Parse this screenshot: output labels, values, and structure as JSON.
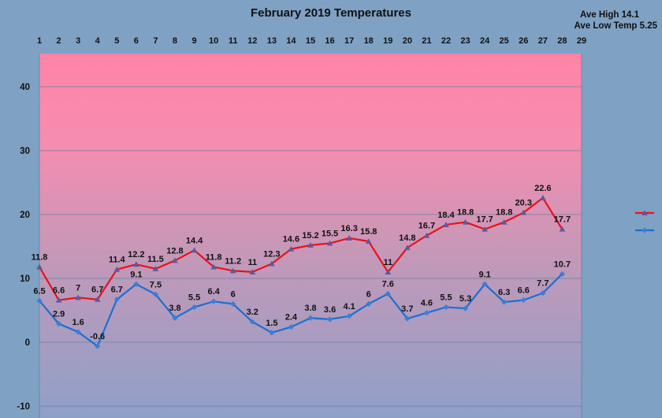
{
  "chart_data": {
    "type": "line",
    "title": "February 2019 Temperatures",
    "annotations": {
      "ave_high": "Ave High 14.1",
      "ave_low": "Ave Low  Temp 5.25"
    },
    "x": [
      1,
      2,
      3,
      4,
      5,
      6,
      7,
      8,
      9,
      10,
      11,
      12,
      13,
      14,
      15,
      16,
      17,
      18,
      19,
      20,
      21,
      22,
      23,
      24,
      25,
      26,
      27,
      28
    ],
    "x_ticks": [
      "1",
      "2",
      "3",
      "4",
      "5",
      "6",
      "7",
      "8",
      "9",
      "10",
      "11",
      "12",
      "13",
      "14",
      "15",
      "16",
      "17",
      "18",
      "19",
      "20",
      "21",
      "22",
      "23",
      "24",
      "25",
      "26",
      "27",
      "28",
      "29"
    ],
    "xlim": [
      1,
      29
    ],
    "x_axis_position": "top",
    "ylim": [
      -10,
      45
    ],
    "y_ticks": [
      "-10",
      "0",
      "10",
      "20",
      "30",
      "40"
    ],
    "y_tick_values": [
      -10,
      0,
      10,
      20,
      30,
      40
    ],
    "grid": true,
    "legend": "right",
    "series": [
      {
        "key": "high",
        "color": "#e8121a",
        "marker": "triangle",
        "marker_color": "#5a5aa0",
        "values": [
          11.8,
          6.6,
          7,
          6.7,
          11.4,
          12.2,
          11.5,
          12.8,
          14.4,
          11.8,
          11.2,
          11,
          12.3,
          14.6,
          15.2,
          15.5,
          16.3,
          15.8,
          11,
          14.8,
          16.7,
          18.4,
          18.8,
          17.7,
          18.8,
          20.3,
          22.6,
          17.7
        ]
      },
      {
        "key": "low",
        "color": "#1b6fd0",
        "marker": "diamond",
        "marker_color": "#3b7ed6",
        "values": [
          6.5,
          2.9,
          1.6,
          -0.6,
          6.7,
          9.1,
          7.5,
          3.8,
          5.5,
          6.4,
          6,
          3.2,
          1.5,
          2.4,
          3.8,
          3.6,
          4.1,
          6,
          7.6,
          3.7,
          4.6,
          5.5,
          5.3,
          9.1,
          6.3,
          6.6,
          7.7,
          10.7
        ]
      }
    ]
  }
}
